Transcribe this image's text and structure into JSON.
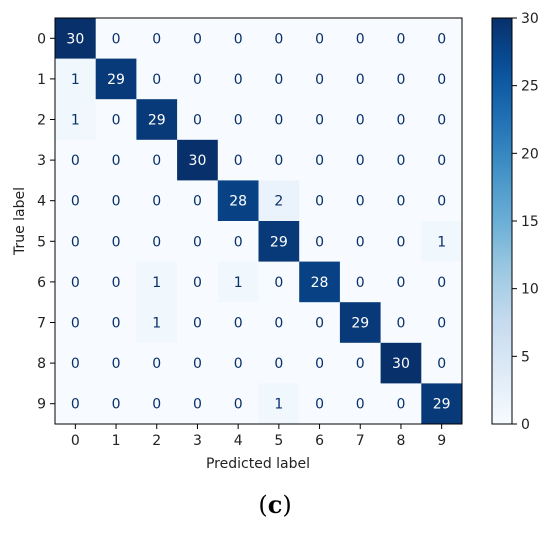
{
  "caption": {
    "open": "(",
    "letter": "c",
    "close": ")"
  },
  "chart_data": {
    "type": "heatmap",
    "title": "",
    "xlabel": "Predicted label",
    "ylabel": "True label",
    "x_categories": [
      "0",
      "1",
      "2",
      "3",
      "4",
      "5",
      "6",
      "7",
      "8",
      "9"
    ],
    "y_categories": [
      "0",
      "1",
      "2",
      "3",
      "4",
      "5",
      "6",
      "7",
      "8",
      "9"
    ],
    "matrix": [
      [
        30,
        0,
        0,
        0,
        0,
        0,
        0,
        0,
        0,
        0
      ],
      [
        1,
        29,
        0,
        0,
        0,
        0,
        0,
        0,
        0,
        0
      ],
      [
        1,
        0,
        29,
        0,
        0,
        0,
        0,
        0,
        0,
        0
      ],
      [
        0,
        0,
        0,
        30,
        0,
        0,
        0,
        0,
        0,
        0
      ],
      [
        0,
        0,
        0,
        0,
        28,
        2,
        0,
        0,
        0,
        0
      ],
      [
        0,
        0,
        0,
        0,
        0,
        29,
        0,
        0,
        0,
        1
      ],
      [
        0,
        0,
        1,
        0,
        1,
        0,
        28,
        0,
        0,
        0
      ],
      [
        0,
        0,
        1,
        0,
        0,
        0,
        0,
        29,
        0,
        0
      ],
      [
        0,
        0,
        0,
        0,
        0,
        0,
        0,
        0,
        30,
        0
      ],
      [
        0,
        0,
        0,
        0,
        0,
        1,
        0,
        0,
        0,
        29
      ]
    ],
    "colormap": "Blues",
    "vmin": 0,
    "vmax": 30,
    "colorbar_ticks": [
      0,
      5,
      10,
      15,
      20,
      25,
      30
    ],
    "colors": {
      "low": "#f7fbff",
      "high": "#08306b",
      "text_light": "#ffffff",
      "text_dark": "#08306b"
    }
  }
}
